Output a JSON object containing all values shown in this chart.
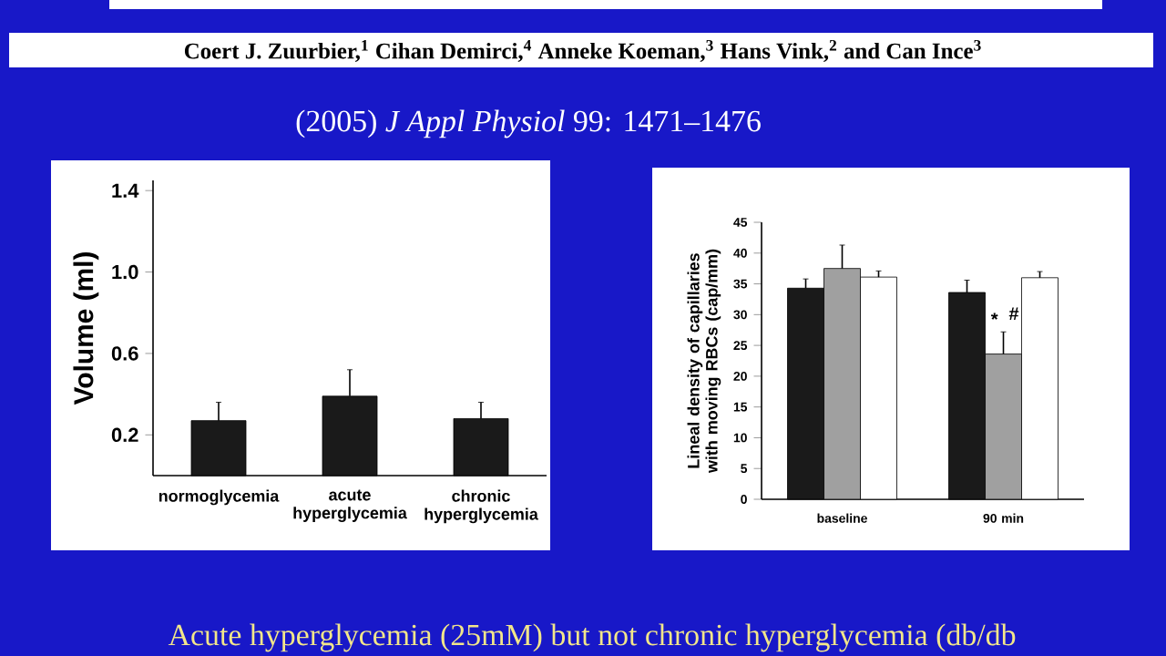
{
  "chart_data": [
    {
      "type": "bar",
      "ylabel": "Volume (ml)",
      "categories": [
        "normoglycemia",
        "acute hyperglycemia",
        "chronic hyperglycemia"
      ],
      "values": [
        0.27,
        0.39,
        0.28
      ],
      "errors": [
        0.09,
        0.13,
        0.08
      ],
      "color": "#1a1a1a",
      "ylim": [
        0,
        1.45
      ],
      "yticks": [
        0.2,
        0.6,
        {
          "value": 1.0,
          "label": "1.0"
        },
        1.4
      ],
      "annotations": [
        "Coert J. Zuurbier,$^{1}$ Cihan Demirci,$^{4}$ Anneke Koeman,$^{3}$ Hans Vink,$^{2}$ and Can Ince$^{3}$",
        "(2005) *J Appl Physiol* 99: 1471–1476",
        "Acute hyperglycemia (25mM) but not chronic hyperglycemia (db/db"
      ]
    },
    {
      "type": "bar",
      "ylabel": "Lineal density of capillaries with moving RBCs (cap/mm)",
      "categories": [
        "baseline",
        "90 min"
      ],
      "series": [
        {
          "color": "#1a1a1a",
          "values": [
            34.3,
            33.6
          ],
          "errors": [
            1.5,
            2.0
          ]
        },
        {
          "color": "#a0a0a0",
          "values": [
            37.5,
            23.6
          ],
          "errors": [
            3.8,
            3.6
          ]
        },
        {
          "color": "#ffffff",
          "values": [
            36.1,
            36.0
          ],
          "errors": [
            1.0,
            1.0
          ]
        }
      ],
      "ylim": [
        0,
        45
      ],
      "yticks": [
        0,
        5,
        10,
        15,
        20,
        25,
        30,
        35,
        40,
        45
      ],
      "annotations": [
        "*",
        "#"
      ]
    }
  ]
}
